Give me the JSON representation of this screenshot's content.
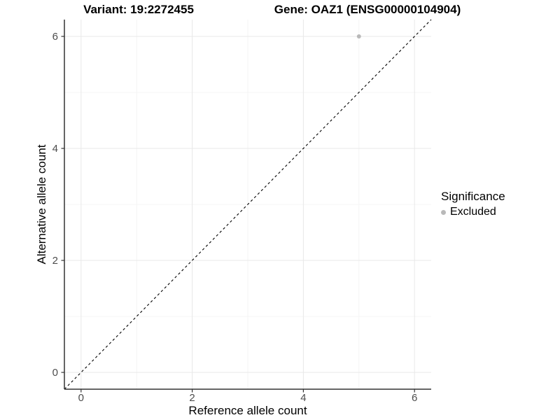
{
  "titles": {
    "variant": "Variant: 19:2272455",
    "gene": "Gene: OAZ1 (ENSG00000104904)"
  },
  "axes": {
    "x_label": "Reference allele count",
    "y_label": "Alternative allele count"
  },
  "legend": {
    "title": "Significance",
    "items": [
      {
        "label": "Excluded",
        "color": "#b9b9b9"
      }
    ]
  },
  "chart_data": {
    "type": "scatter",
    "title": "Variant: 19:2272455 | Gene: OAZ1 (ENSG00000104904)",
    "xlabel": "Reference allele count",
    "ylabel": "Alternative allele count",
    "xlim": [
      -0.3,
      6.3
    ],
    "ylim": [
      -0.3,
      6.3
    ],
    "x_breaks": [
      0,
      2,
      4,
      6
    ],
    "y_breaks": [
      0,
      2,
      4,
      6
    ],
    "x_minor_breaks": [
      1,
      3,
      5
    ],
    "y_minor_breaks": [
      1,
      3,
      5
    ],
    "grid": true,
    "legend_position": "right",
    "series": [
      {
        "name": "Excluded",
        "color": "#b9b9b9",
        "point_radius": 3,
        "points": [
          {
            "x": 5,
            "y": 6
          }
        ]
      }
    ],
    "reference_line": {
      "type": "identity",
      "slope": 1,
      "intercept": 0,
      "style": "dashed",
      "color": "#000000"
    }
  },
  "colors": {
    "grid_major": "#e8e8e8",
    "grid_minor": "#f4f4f4",
    "axis_line": "#333333",
    "tick_label": "#4d4d4d"
  }
}
